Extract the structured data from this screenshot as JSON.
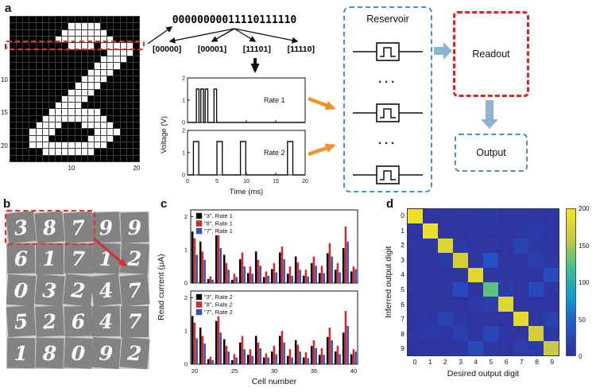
{
  "figure": {
    "panel_labels": {
      "a": "a",
      "b": "b",
      "c": "c",
      "d": "d"
    }
  },
  "panel_a": {
    "digit_image": {
      "y_ticks": [
        "5",
        "10",
        "15",
        "20"
      ],
      "x_ticks": [
        "10",
        "20"
      ],
      "bitmap": [
        "00000000000000000000",
        "00000000011111000000",
        "00000000111111100000",
        "00000001111111110000",
        "00000000011110111110",
        "00000000000000011110",
        "00000000000000111100",
        "00000000000001111000",
        "00000000000011110000",
        "00000000000111100000",
        "00000000001111000000",
        "00000000011110000000",
        "00000000111100000000",
        "00000001111000000000",
        "00000011111111000000",
        "00000111111111100000",
        "00001111000111110000",
        "00011110000001111000",
        "00011100000011110000",
        "00011111111111100000",
        "00000111111110000000",
        "00000000000000000000"
      ]
    },
    "binary_string": "00000000011110111110",
    "bit_groups": [
      "[00000]",
      "[00001]",
      "[11101]",
      "[11110]"
    ],
    "voltage": {
      "ylabel": "Voltage (V)",
      "xlabel": "Time (ms)",
      "y_range": [
        0,
        2
      ],
      "x_range": [
        0,
        20
      ],
      "y_ticks": [
        "0",
        "1",
        "2"
      ],
      "x_ticks": [
        "0",
        "5",
        "10",
        "15",
        "20"
      ],
      "pulse_amplitude_v": 1.5,
      "plots": [
        {
          "label": "Rate 1",
          "pulses": [
            {
              "t": 1.5,
              "w": 0.45
            },
            {
              "t": 2.25,
              "w": 0.45
            },
            {
              "t": 3.0,
              "w": 0.45
            },
            {
              "t": 4.5,
              "w": 0.45
            }
          ]
        },
        {
          "label": "Rate 2",
          "pulses": [
            {
              "t": 1.0,
              "w": 0.9
            },
            {
              "t": 5.0,
              "w": 0.9
            },
            {
              "t": 9.0,
              "w": 0.9
            },
            {
              "t": 17.0,
              "w": 0.9
            }
          ]
        }
      ]
    },
    "reservoir": {
      "label": "Reservoir",
      "ellipsis": "···",
      "memristor_count": 3
    },
    "readout_label": "Readout",
    "output_label": "Output",
    "colors": {
      "highlight_red": "#e8302a",
      "reservoir_blue": "#4a8fc4",
      "readout_red": "#e02424",
      "orange_arrow": "#f0922e",
      "block_arrow": "#8fb4cd"
    }
  },
  "panel_b": {
    "digits": [
      [
        "3",
        "8",
        "7",
        "9",
        "9"
      ],
      [
        "6",
        "1",
        "7",
        "1",
        "2"
      ],
      [
        "0",
        "3",
        "2",
        "4",
        "7"
      ],
      [
        "5",
        "2",
        "6",
        "4",
        "7"
      ],
      [
        "1",
        "8",
        "0",
        "9",
        "2"
      ]
    ]
  },
  "chart_data": [
    {
      "id": "read-current-rate1",
      "type": "bar",
      "ylabel": "Read current (μA)",
      "xlabel": "Cell number",
      "x_start": 20,
      "x": [
        20,
        21,
        22,
        23,
        24,
        25,
        26,
        27,
        28,
        29,
        30,
        31,
        32,
        33,
        34,
        35,
        36,
        37,
        38,
        39,
        40
      ],
      "x_ticks": [
        20,
        25,
        30,
        35,
        40
      ],
      "y_ticks": [
        0,
        1,
        2
      ],
      "ylim": [
        0,
        2.2
      ],
      "series": [
        {
          "name": "\"3\", Rate 1",
          "color": "#000000",
          "values": [
            1.55,
            1.25,
            0.12,
            1.45,
            0.85,
            0.1,
            0.72,
            0.3,
            0.95,
            0.18,
            0.42,
            0.92,
            0.28,
            0.8,
            0.22,
            0.6,
            0.3,
            0.9,
            0.4,
            1.05,
            0.35
          ]
        },
        {
          "name": "\"8\", Rate 1",
          "color": "#d62b28",
          "values": [
            1.35,
            0.95,
            0.2,
            1.7,
            0.6,
            0.28,
            0.92,
            0.5,
            0.7,
            0.35,
            0.6,
            1.1,
            0.5,
            0.62,
            0.4,
            0.8,
            0.52,
            1.2,
            0.6,
            1.7,
            0.5
          ]
        },
        {
          "name": "\"7\", Rate 1",
          "color": "#3a50c8",
          "values": [
            0.85,
            0.7,
            0.1,
            1.05,
            0.4,
            0.18,
            0.5,
            0.28,
            0.52,
            0.22,
            0.32,
            0.72,
            0.22,
            0.4,
            0.2,
            0.52,
            0.3,
            0.8,
            0.32,
            1.25,
            0.42
          ]
        }
      ]
    },
    {
      "id": "read-current-rate2",
      "type": "bar",
      "ylabel": "Read current (μA)",
      "xlabel": "Cell number",
      "x_start": 20,
      "x": [
        20,
        21,
        22,
        23,
        24,
        25,
        26,
        27,
        28,
        29,
        30,
        31,
        32,
        33,
        34,
        35,
        36,
        37,
        38,
        39,
        40
      ],
      "x_ticks": [
        20,
        25,
        30,
        35,
        40
      ],
      "y_ticks": [
        0,
        1,
        2
      ],
      "ylim": [
        0,
        2.2
      ],
      "series": [
        {
          "name": "\"3\", Rate 2",
          "color": "#000000",
          "values": [
            1.45,
            1.1,
            0.15,
            1.3,
            0.75,
            0.12,
            0.65,
            0.28,
            0.85,
            0.2,
            0.38,
            0.85,
            0.25,
            0.72,
            0.2,
            0.55,
            0.28,
            0.82,
            0.38,
            0.95,
            0.3
          ]
        },
        {
          "name": "\"8\", Rate 2",
          "color": "#d62b28",
          "values": [
            1.25,
            0.85,
            0.22,
            1.55,
            0.55,
            0.3,
            0.85,
            0.45,
            0.65,
            0.32,
            0.55,
            1.0,
            0.45,
            0.58,
            0.36,
            0.72,
            0.48,
            1.1,
            0.55,
            1.6,
            0.45
          ]
        },
        {
          "name": "\"7\", Rate 2",
          "color": "#3a50c8",
          "values": [
            0.78,
            0.62,
            0.12,
            0.95,
            0.38,
            0.2,
            0.45,
            0.25,
            0.48,
            0.2,
            0.3,
            0.65,
            0.2,
            0.38,
            0.18,
            0.48,
            0.28,
            0.72,
            0.3,
            1.15,
            0.38
          ]
        }
      ]
    },
    {
      "id": "confusion-matrix",
      "type": "heatmap",
      "xlabel": "Desired output digit",
      "ylabel": "Inferred output digit",
      "x_ticks": [
        "0",
        "1",
        "2",
        "3",
        "4",
        "5",
        "6",
        "7",
        "8",
        "9"
      ],
      "y_ticks": [
        "0",
        "1",
        "2",
        "3",
        "4",
        "5",
        "6",
        "7",
        "8",
        "9"
      ],
      "vmin": 0,
      "vmax": 200,
      "colorbar_ticks": [
        0,
        50,
        100,
        150,
        200
      ],
      "colormap_stops": [
        [
          0,
          "#30309a"
        ],
        [
          0.2,
          "#2553c8"
        ],
        [
          0.4,
          "#0f9bce"
        ],
        [
          0.6,
          "#3fc08c"
        ],
        [
          0.8,
          "#c9c93e"
        ],
        [
          1,
          "#f2e422"
        ]
      ],
      "matrix": [
        [
          196,
          6,
          8,
          5,
          7,
          9,
          6,
          5,
          8,
          6
        ],
        [
          5,
          192,
          7,
          6,
          8,
          5,
          7,
          9,
          12,
          6
        ],
        [
          8,
          7,
          178,
          10,
          6,
          8,
          5,
          22,
          9,
          7
        ],
        [
          6,
          5,
          12,
          170,
          7,
          35,
          6,
          8,
          15,
          9
        ],
        [
          7,
          8,
          6,
          7,
          182,
          8,
          9,
          6,
          7,
          30
        ],
        [
          9,
          6,
          8,
          30,
          6,
          128,
          12,
          5,
          28,
          8
        ],
        [
          6,
          7,
          5,
          6,
          10,
          14,
          180,
          4,
          8,
          5
        ],
        [
          5,
          9,
          20,
          8,
          6,
          5,
          4,
          186,
          7,
          18
        ],
        [
          8,
          10,
          9,
          16,
          7,
          25,
          8,
          6,
          168,
          10
        ],
        [
          6,
          5,
          7,
          9,
          28,
          8,
          5,
          16,
          12,
          160
        ]
      ]
    }
  ]
}
